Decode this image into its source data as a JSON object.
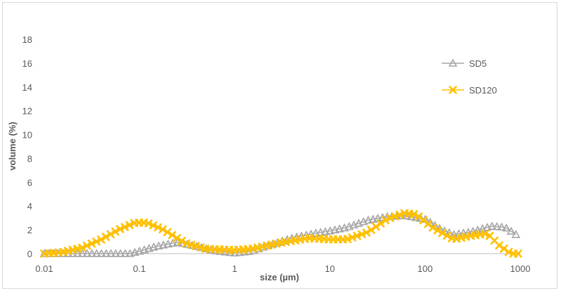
{
  "chart_data": {
    "type": "line",
    "x_scale": "log",
    "xlabel": "size (µm)",
    "ylabel": "volume (%)",
    "xlim": [
      0.01,
      1000
    ],
    "ylim": [
      0,
      18
    ],
    "x_tick_labels": [
      "0.01",
      "0.1",
      "1",
      "10",
      "100",
      "1000"
    ],
    "y_tick_labels": [
      "0",
      "2",
      "4",
      "6",
      "8",
      "10",
      "12",
      "14",
      "16",
      "18"
    ],
    "grid": false,
    "legend_position": "right",
    "series": [
      {
        "name": "SD5",
        "color": "#a6a6a6",
        "marker": "triangle",
        "points": [
          [
            0.01,
            0
          ],
          [
            0.02,
            0
          ],
          [
            0.05,
            0
          ],
          [
            0.08,
            0
          ],
          [
            0.1,
            0.2
          ],
          [
            0.15,
            0.6
          ],
          [
            0.25,
            0.95
          ],
          [
            0.4,
            0.6
          ],
          [
            0.6,
            0.25
          ],
          [
            1.0,
            0.05
          ],
          [
            1.5,
            0.2
          ],
          [
            2.5,
            0.8
          ],
          [
            4,
            1.3
          ],
          [
            7,
            1.7
          ],
          [
            10,
            1.9
          ],
          [
            15,
            2.2
          ],
          [
            25,
            2.8
          ],
          [
            40,
            3.1
          ],
          [
            60,
            3.2
          ],
          [
            100,
            2.9
          ],
          [
            150,
            2.0
          ],
          [
            200,
            1.6
          ],
          [
            300,
            1.8
          ],
          [
            500,
            2.3
          ],
          [
            700,
            2.2
          ],
          [
            900,
            1.6
          ]
        ]
      },
      {
        "name": "SD120",
        "color": "#ffc000",
        "marker": "x",
        "points": [
          [
            0.01,
            0
          ],
          [
            0.015,
            0.1
          ],
          [
            0.025,
            0.5
          ],
          [
            0.04,
            1.2
          ],
          [
            0.06,
            2.0
          ],
          [
            0.09,
            2.6
          ],
          [
            0.12,
            2.6
          ],
          [
            0.18,
            2.0
          ],
          [
            0.3,
            0.9
          ],
          [
            0.5,
            0.4
          ],
          [
            1.0,
            0.3
          ],
          [
            1.5,
            0.4
          ],
          [
            3,
            0.9
          ],
          [
            6,
            1.3
          ],
          [
            10,
            1.2
          ],
          [
            15,
            1.2
          ],
          [
            25,
            1.8
          ],
          [
            40,
            2.9
          ],
          [
            60,
            3.4
          ],
          [
            80,
            3.3
          ],
          [
            120,
            2.2
          ],
          [
            200,
            1.2
          ],
          [
            300,
            1.5
          ],
          [
            450,
            1.7
          ],
          [
            600,
            0.7
          ],
          [
            800,
            0
          ],
          [
            950,
            0
          ]
        ]
      }
    ]
  }
}
